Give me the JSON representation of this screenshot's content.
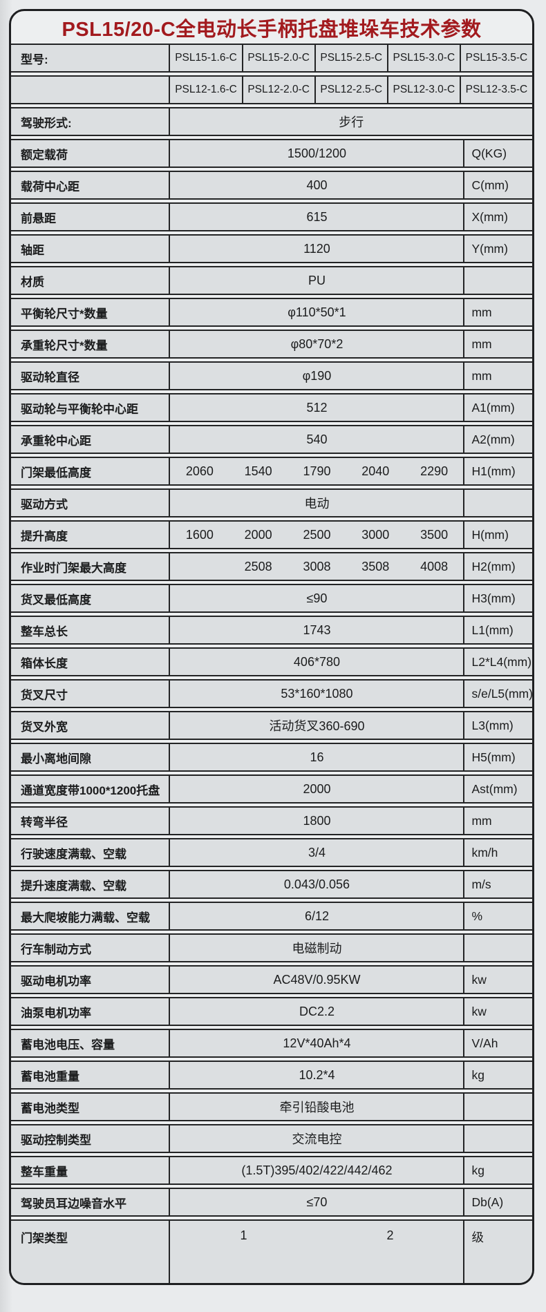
{
  "title": "PSL15/20-C全电动长手柄托盘堆垛车技术参数",
  "theme": {
    "title_color": "#a21a1e",
    "border_color": "#1e1f21",
    "cell_bg": "#dcdfe1",
    "page_bg": "#e9ebed"
  },
  "header": {
    "label": "型号:",
    "models15": [
      "PSL15-1.6-C",
      "PSL15-2.0-C",
      "PSL15-2.5-C",
      "PSL15-3.0-C",
      "PSL15-3.5-C"
    ],
    "models12": [
      "PSL12-1.6-C",
      "PSL12-2.0-C",
      "PSL12-2.5-C",
      "PSL12-3.0-C",
      "PSL12-3.5-C"
    ]
  },
  "walk_row": {
    "label": "驾驶形式:",
    "value": "步行"
  },
  "rows": [
    {
      "label": "额定载荷",
      "value": "1500/1200",
      "unit": "Q(KG)"
    },
    {
      "label": "载荷中心距",
      "value": "400",
      "unit": "C(mm)"
    },
    {
      "label": "前悬距",
      "value": "615",
      "unit": "X(mm)"
    },
    {
      "label": "轴距",
      "value": "1120",
      "unit": "Y(mm)"
    },
    {
      "label": "材质",
      "value": "PU",
      "unit": ""
    },
    {
      "label": "平衡轮尺寸*数量",
      "value": "φ110*50*1",
      "unit": "mm"
    },
    {
      "label": "承重轮尺寸*数量",
      "value": "φ80*70*2",
      "unit": "mm"
    },
    {
      "label": "驱动轮直径",
      "value": "φ190",
      "unit": "mm"
    },
    {
      "label": "驱动轮与平衡轮中心距",
      "value": "512",
      "unit": "A1(mm)"
    },
    {
      "label": "承重轮中心距",
      "value": "540",
      "unit": "A2(mm)"
    },
    {
      "label": "门架最低高度",
      "values": [
        "2060",
        "1540",
        "1790",
        "2040",
        "2290"
      ],
      "unit": "H1(mm)"
    },
    {
      "label": "驱动方式",
      "value": "电动",
      "unit": ""
    },
    {
      "label": "提升高度",
      "values": [
        "1600",
        "2000",
        "2500",
        "3000",
        "3500"
      ],
      "unit": "H(mm)"
    },
    {
      "label": "作业时门架最大高度",
      "values": [
        "",
        "2508",
        "3008",
        "3508",
        "4008"
      ],
      "unit": "H2(mm)"
    },
    {
      "label": "货叉最低高度",
      "value": "≤90",
      "unit": "H3(mm)"
    },
    {
      "label": "整车总长",
      "value": "1743",
      "unit": "L1(mm)"
    },
    {
      "label": "箱体长度",
      "value": "406*780",
      "unit": "L2*L4(mm)"
    },
    {
      "label": "货叉尺寸",
      "value": "53*160*1080",
      "unit": "s/e/L5(mm)"
    },
    {
      "label": "货叉外宽",
      "value": "活动货叉360-690",
      "unit": "L3(mm)"
    },
    {
      "label": "最小离地间隙",
      "value": "16",
      "unit": "H5(mm)"
    },
    {
      "label": "通道宽度带1000*1200托盘",
      "value": "2000",
      "unit": "Ast(mm)"
    },
    {
      "label": "转弯半径",
      "value": "1800",
      "unit": "mm"
    },
    {
      "label": "行驶速度满载、空载",
      "value": "3/4",
      "unit": "km/h"
    },
    {
      "label": "提升速度满载、空载",
      "value": "0.043/0.056",
      "unit": "m/s"
    },
    {
      "label": "最大爬坡能力满载、空载",
      "value": "6/12",
      "unit": "%"
    },
    {
      "label": "行车制动方式",
      "value": "电磁制动",
      "unit": ""
    },
    {
      "label": "驱动电机功率",
      "value": "AC48V/0.95KW",
      "unit": "kw"
    },
    {
      "label": "油泵电机功率",
      "value": "DC2.2",
      "unit": "kw"
    },
    {
      "label": "蓄电池电压、容量",
      "value": "12V*40Ah*4",
      "unit": "V/Ah"
    },
    {
      "label": "蓄电池重量",
      "value": "10.2*4",
      "unit": "kg"
    },
    {
      "label": "蓄电池类型",
      "value": "牵引铅酸电池",
      "unit": ""
    },
    {
      "label": "驱动控制类型",
      "value": "交流电控",
      "unit": ""
    },
    {
      "label": "整车重量",
      "value": "(1.5T)395/402/422/442/462",
      "unit": "kg"
    },
    {
      "label": "驾驶员耳边噪音水平",
      "value": "≤70",
      "unit": "Db(A)"
    },
    {
      "label": "门架类型",
      "values": [
        "1",
        "2"
      ],
      "unit": "级",
      "tall": true
    }
  ]
}
